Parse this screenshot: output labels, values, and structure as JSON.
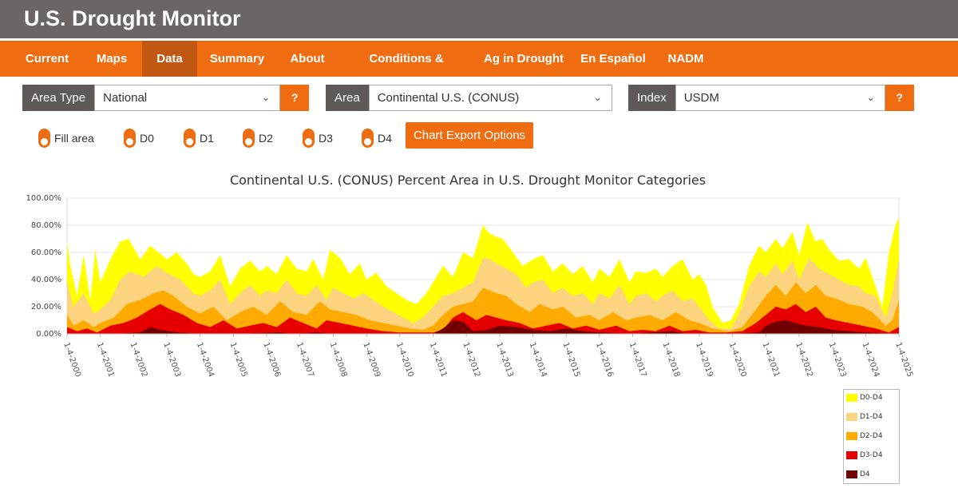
{
  "header": {
    "title": "U.S. Drought Monitor"
  },
  "nav": {
    "items": [
      "Current",
      "Maps",
      "Data",
      "Summary",
      "About",
      "Conditions & Outlooks",
      "Ag in Drought",
      "En Español",
      "NADM"
    ],
    "active": "Data"
  },
  "filters": {
    "area_type": {
      "label": "Area Type",
      "value": "National",
      "help": "?"
    },
    "area": {
      "label": "Area",
      "value": "Continental U.S. (CONUS)"
    },
    "index": {
      "label": "Index",
      "value": "USDM",
      "help": "?"
    }
  },
  "toggles": [
    "Fill area",
    "D0",
    "D1",
    "D2",
    "D3",
    "D4"
  ],
  "export_button": "Chart Export Options",
  "colors": {
    "brand": "#ef6c11",
    "header": "#6b6663",
    "d0": "#ffff00",
    "d1": "#fcd37f",
    "d2": "#ffaa00",
    "d3": "#e60000",
    "d4": "#730000"
  },
  "chart_data": {
    "type": "area",
    "title": "Continental U.S. (CONUS) Percent Area in U.S. Drought Monitor Categories",
    "xlabel": "",
    "ylabel": "",
    "ylim": [
      0,
      100
    ],
    "y_ticks": [
      "0.00%",
      "20.00%",
      "40.00%",
      "60.00%",
      "80.00%",
      "100.00%"
    ],
    "x_tick_labels": [
      "1-4-2000",
      "1-4-2001",
      "1-4-2002",
      "1-4-2003",
      "1-4-2004",
      "1-4-2005",
      "1-4-2006",
      "1-4-2007",
      "1-4-2008",
      "1-4-2009",
      "1-4-2010",
      "1-4-2011",
      "1-4-2012",
      "1-4-2013",
      "1-4-2014",
      "1-4-2015",
      "1-4-2016",
      "1-4-2017",
      "1-4-2018",
      "1-4-2019",
      "1-4-2020",
      "1-4-2021",
      "1-4-2022",
      "1-4-2023",
      "1-4-2024",
      "1-4-2025"
    ],
    "x_range": [
      2000.0,
      2025.0
    ],
    "grid": true,
    "legend_position": "bottom-right",
    "series": [
      {
        "name": "D0-D4",
        "color": "#ffff00",
        "x": [
          2000.0,
          2000.1,
          2000.3,
          2000.5,
          2000.7,
          2000.85,
          2001.0,
          2001.3,
          2001.6,
          2001.85,
          2002.2,
          2002.5,
          2002.75,
          2003.0,
          2003.3,
          2003.6,
          2003.8,
          2004.0,
          2004.3,
          2004.6,
          2004.9,
          2005.2,
          2005.5,
          2005.8,
          2006.0,
          2006.3,
          2006.6,
          2006.9,
          2007.2,
          2007.4,
          2007.7,
          2007.9,
          2008.2,
          2008.5,
          2008.8,
          2009.0,
          2009.3,
          2009.6,
          2009.9,
          2010.2,
          2010.5,
          2010.8,
          2011.0,
          2011.3,
          2011.6,
          2011.9,
          2012.2,
          2012.5,
          2012.65,
          2012.85,
          2013.1,
          2013.4,
          2013.7,
          2014.0,
          2014.3,
          2014.6,
          2014.9,
          2015.2,
          2015.5,
          2015.8,
          2016.0,
          2016.3,
          2016.6,
          2016.9,
          2017.1,
          2017.4,
          2017.7,
          2017.9,
          2018.2,
          2018.5,
          2018.8,
          2019.0,
          2019.2,
          2019.4,
          2019.7,
          2019.95,
          2020.2,
          2020.5,
          2020.8,
          2021.0,
          2021.3,
          2021.5,
          2021.8,
          2022.0,
          2022.25,
          2022.5,
          2022.7,
          2022.9,
          2023.2,
          2023.5,
          2023.8,
          2024.0,
          2024.3,
          2024.5,
          2024.7,
          2024.9,
          2025.0
        ],
        "values": [
          67,
          50,
          28,
          58,
          25,
          62,
          38,
          55,
          68,
          70,
          55,
          65,
          60,
          55,
          60,
          52,
          44,
          42,
          46,
          58,
          35,
          48,
          54,
          46,
          50,
          44,
          58,
          48,
          46,
          55,
          40,
          62,
          56,
          44,
          52,
          40,
          45,
          35,
          30,
          25,
          22,
          30,
          38,
          50,
          42,
          60,
          56,
          80,
          75,
          72,
          70,
          60,
          50,
          55,
          58,
          46,
          52,
          44,
          50,
          38,
          48,
          42,
          55,
          38,
          46,
          45,
          48,
          42,
          50,
          55,
          40,
          44,
          36,
          20,
          8,
          10,
          22,
          50,
          65,
          60,
          70,
          63,
          75,
          58,
          82,
          68,
          70,
          62,
          54,
          55,
          48,
          56,
          35,
          20,
          60,
          80,
          86
        ]
      },
      {
        "name": "D1-D4",
        "color": "#fcd37f",
        "x": [
          2000.0,
          2000.2,
          2000.5,
          2000.8,
          2001.0,
          2001.3,
          2001.6,
          2001.9,
          2002.3,
          2002.7,
          2003.0,
          2003.4,
          2003.8,
          2004.0,
          2004.3,
          2004.6,
          2004.9,
          2005.2,
          2005.5,
          2005.8,
          2006.0,
          2006.3,
          2006.6,
          2006.9,
          2007.2,
          2007.5,
          2007.8,
          2008.0,
          2008.3,
          2008.6,
          2008.9,
          2009.2,
          2009.5,
          2009.8,
          2010.1,
          2010.4,
          2010.7,
          2011.0,
          2011.3,
          2011.6,
          2011.9,
          2012.2,
          2012.5,
          2012.7,
          2012.9,
          2013.2,
          2013.5,
          2013.8,
          2014.0,
          2014.3,
          2014.6,
          2014.9,
          2015.2,
          2015.5,
          2015.8,
          2016.0,
          2016.3,
          2016.6,
          2016.9,
          2017.1,
          2017.4,
          2017.7,
          2017.9,
          2018.2,
          2018.5,
          2018.8,
          2019.0,
          2019.3,
          2019.6,
          2019.95,
          2020.2,
          2020.5,
          2020.8,
          2021.0,
          2021.3,
          2021.5,
          2021.8,
          2022.0,
          2022.3,
          2022.6,
          2022.9,
          2023.2,
          2023.5,
          2023.8,
          2024.0,
          2024.3,
          2024.6,
          2024.8,
          2025.0
        ],
        "values": [
          38,
          20,
          30,
          15,
          18,
          25,
          40,
          46,
          42,
          50,
          45,
          40,
          30,
          28,
          32,
          40,
          22,
          30,
          36,
          28,
          32,
          30,
          40,
          30,
          28,
          36,
          25,
          34,
          30,
          26,
          30,
          25,
          20,
          16,
          12,
          8,
          12,
          20,
          28,
          30,
          34,
          38,
          56,
          55,
          52,
          48,
          44,
          34,
          38,
          40,
          30,
          34,
          28,
          30,
          22,
          30,
          26,
          36,
          22,
          28,
          30,
          24,
          28,
          32,
          24,
          26,
          20,
          10,
          4,
          4,
          15,
          35,
          46,
          42,
          52,
          44,
          54,
          40,
          56,
          48,
          44,
          40,
          36,
          35,
          30,
          28,
          12,
          30,
          55
        ]
      },
      {
        "name": "D2-D4",
        "color": "#ffaa00",
        "x": [
          2000.0,
          2000.2,
          2000.5,
          2000.8,
          2001.0,
          2001.4,
          2001.8,
          2002.2,
          2002.6,
          2002.9,
          2003.2,
          2003.6,
          2004.0,
          2004.4,
          2004.8,
          2005.2,
          2005.6,
          2006.0,
          2006.4,
          2006.8,
          2007.2,
          2007.6,
          2007.9,
          2008.3,
          2008.7,
          2009.1,
          2009.5,
          2009.9,
          2010.3,
          2010.7,
          2011.0,
          2011.3,
          2011.6,
          2011.9,
          2012.2,
          2012.5,
          2012.7,
          2012.9,
          2013.2,
          2013.5,
          2013.9,
          2014.2,
          2014.6,
          2014.9,
          2015.3,
          2015.7,
          2016.0,
          2016.4,
          2016.8,
          2017.1,
          2017.5,
          2017.9,
          2018.3,
          2018.7,
          2019.0,
          2019.4,
          2019.9,
          2020.3,
          2020.7,
          2021.0,
          2021.3,
          2021.6,
          2021.9,
          2022.2,
          2022.5,
          2022.8,
          2023.1,
          2023.5,
          2023.9,
          2024.2,
          2024.6,
          2024.8,
          2025.0
        ],
        "values": [
          14,
          6,
          10,
          5,
          8,
          12,
          22,
          25,
          30,
          32,
          28,
          20,
          15,
          20,
          10,
          16,
          20,
          14,
          24,
          16,
          14,
          24,
          18,
          16,
          14,
          10,
          8,
          6,
          4,
          3,
          6,
          14,
          20,
          22,
          24,
          34,
          32,
          30,
          28,
          22,
          16,
          22,
          18,
          20,
          12,
          14,
          10,
          16,
          10,
          12,
          14,
          10,
          16,
          10,
          8,
          4,
          2,
          5,
          18,
          28,
          36,
          28,
          38,
          30,
          36,
          28,
          26,
          22,
          20,
          16,
          6,
          10,
          25
        ]
      },
      {
        "name": "D3-D4",
        "color": "#e60000",
        "x": [
          2000.0,
          2000.3,
          2000.6,
          2000.9,
          2001.3,
          2001.7,
          2002.1,
          2002.5,
          2002.8,
          2003.1,
          2003.5,
          2003.9,
          2004.3,
          2004.7,
          2005.1,
          2005.5,
          2005.9,
          2006.3,
          2006.7,
          2007.1,
          2007.5,
          2007.8,
          2008.2,
          2008.6,
          2009.0,
          2009.5,
          2010.0,
          2010.5,
          2011.0,
          2011.3,
          2011.6,
          2011.9,
          2012.3,
          2012.6,
          2012.9,
          2013.2,
          2013.6,
          2014.0,
          2014.4,
          2014.8,
          2015.2,
          2015.6,
          2016.0,
          2016.5,
          2016.9,
          2017.3,
          2017.7,
          2018.1,
          2018.5,
          2018.9,
          2019.3,
          2019.8,
          2020.3,
          2020.7,
          2021.0,
          2021.3,
          2021.6,
          2021.9,
          2022.2,
          2022.5,
          2022.8,
          2023.1,
          2023.5,
          2023.9,
          2024.3,
          2024.7,
          2025.0
        ],
        "values": [
          5,
          2,
          4,
          1,
          6,
          8,
          12,
          18,
          22,
          18,
          14,
          8,
          5,
          10,
          4,
          6,
          8,
          5,
          12,
          8,
          4,
          10,
          8,
          6,
          4,
          2,
          1,
          1,
          1,
          3,
          12,
          16,
          10,
          14,
          12,
          10,
          8,
          4,
          6,
          8,
          4,
          6,
          3,
          6,
          2,
          3,
          2,
          6,
          2,
          3,
          1,
          1,
          2,
          8,
          14,
          20,
          18,
          22,
          16,
          20,
          12,
          10,
          8,
          6,
          4,
          1,
          5
        ]
      },
      {
        "name": "D4",
        "color": "#730000",
        "x": [
          2000.0,
          2001.5,
          2002.2,
          2002.5,
          2002.8,
          2003.3,
          2004.0,
          2005.0,
          2006.4,
          2006.8,
          2007.5,
          2008.0,
          2009.0,
          2010.0,
          2011.0,
          2011.3,
          2011.6,
          2011.9,
          2012.2,
          2012.6,
          2013.0,
          2013.5,
          2014.0,
          2014.5,
          2015.0,
          2015.5,
          2016.0,
          2017.0,
          2018.2,
          2018.6,
          2019.0,
          2020.0,
          2020.8,
          2021.0,
          2021.3,
          2021.6,
          2021.9,
          2022.2,
          2022.6,
          2023.0,
          2023.5,
          2024.0,
          2025.0
        ],
        "values": [
          0,
          0,
          1,
          5,
          3,
          1,
          0,
          0,
          1,
          0,
          1,
          0,
          0,
          0,
          0,
          4,
          10,
          9,
          2,
          3,
          6,
          5,
          3,
          2,
          4,
          2,
          1,
          0,
          2,
          0,
          0,
          0,
          1,
          6,
          9,
          10,
          8,
          6,
          5,
          3,
          2,
          1,
          0
        ]
      }
    ]
  }
}
